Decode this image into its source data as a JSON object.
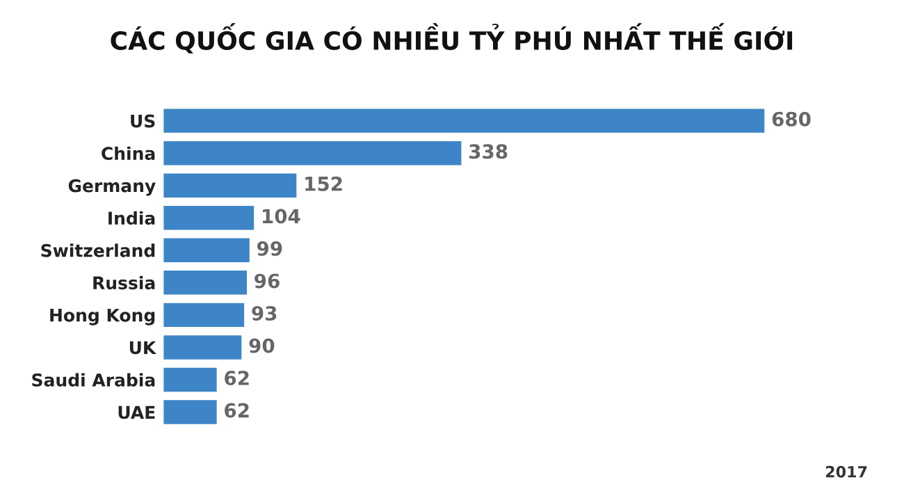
{
  "chart_data": {
    "type": "bar",
    "orientation": "horizontal",
    "title": "CÁC QUỐC GIA CÓ NHIỀU TỶ PHÚ NHẤT THẾ GIỚI",
    "categories": [
      "US",
      "China",
      "Germany",
      "India",
      "Switzerland",
      "Russia",
      "Hong Kong",
      "UK",
      "Saudi Arabia",
      "UAE"
    ],
    "values": [
      680,
      338,
      152,
      104,
      99,
      96,
      93,
      90,
      62,
      62
    ],
    "color": "#3d85c6",
    "data_labels": true,
    "annotations": [
      "2017"
    ]
  }
}
